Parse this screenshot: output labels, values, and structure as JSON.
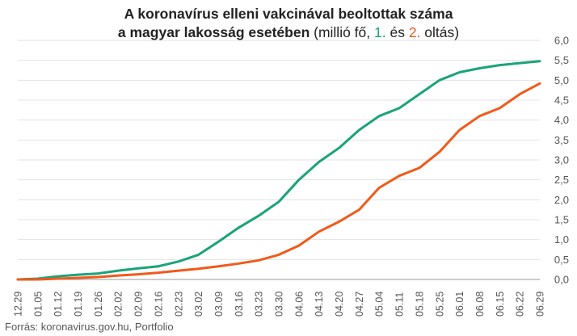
{
  "chart_data": {
    "type": "line",
    "title_line1": "A koronavírus elleni vakcinával beoltottak száma",
    "title_line2_bold": "a magyar lakosság esetében",
    "title_unit_open": " (millió fő, ",
    "title_dose1": "1.",
    "title_and": " és ",
    "title_dose2": "2.",
    "title_unit_close": " oltás)",
    "x": [
      "12.29",
      "01.05",
      "01.12",
      "01.19",
      "01.26",
      "02.02",
      "02.09",
      "02.16",
      "02.23",
      "03.02",
      "03.09",
      "03.16",
      "03.23",
      "03.30",
      "04.06",
      "04.13",
      "04.20",
      "04.27",
      "05.04",
      "05.11",
      "05.18",
      "05.25",
      "06.01",
      "06.08",
      "06.15",
      "06.22",
      "06.29"
    ],
    "series": [
      {
        "name": "1.",
        "color": "#1aa37a",
        "values": [
          0.0,
          0.02,
          0.08,
          0.12,
          0.15,
          0.22,
          0.28,
          0.33,
          0.45,
          0.62,
          0.95,
          1.3,
          1.6,
          1.95,
          2.5,
          2.95,
          3.3,
          3.75,
          4.1,
          4.3,
          4.65,
          5.0,
          5.2,
          5.3,
          5.38,
          5.43,
          5.48
        ]
      },
      {
        "name": "2.",
        "color": "#f05a1a",
        "values": [
          0.0,
          0.0,
          0.02,
          0.04,
          0.06,
          0.1,
          0.13,
          0.17,
          0.22,
          0.27,
          0.33,
          0.4,
          0.48,
          0.62,
          0.85,
          1.2,
          1.45,
          1.75,
          2.3,
          2.6,
          2.8,
          3.2,
          3.75,
          4.1,
          4.3,
          4.65,
          4.92
        ]
      }
    ],
    "y_ticks": [
      "0,0",
      "0,5",
      "1,0",
      "1,5",
      "2,0",
      "2,5",
      "3,0",
      "3,5",
      "4,0",
      "4,5",
      "5,0",
      "5,5",
      "6,0"
    ],
    "ylim": [
      0,
      6
    ],
    "grid": "horizontal",
    "y_axis_side": "right"
  },
  "source": "Forrás: koronavirus.gov.hu, Portfolio"
}
